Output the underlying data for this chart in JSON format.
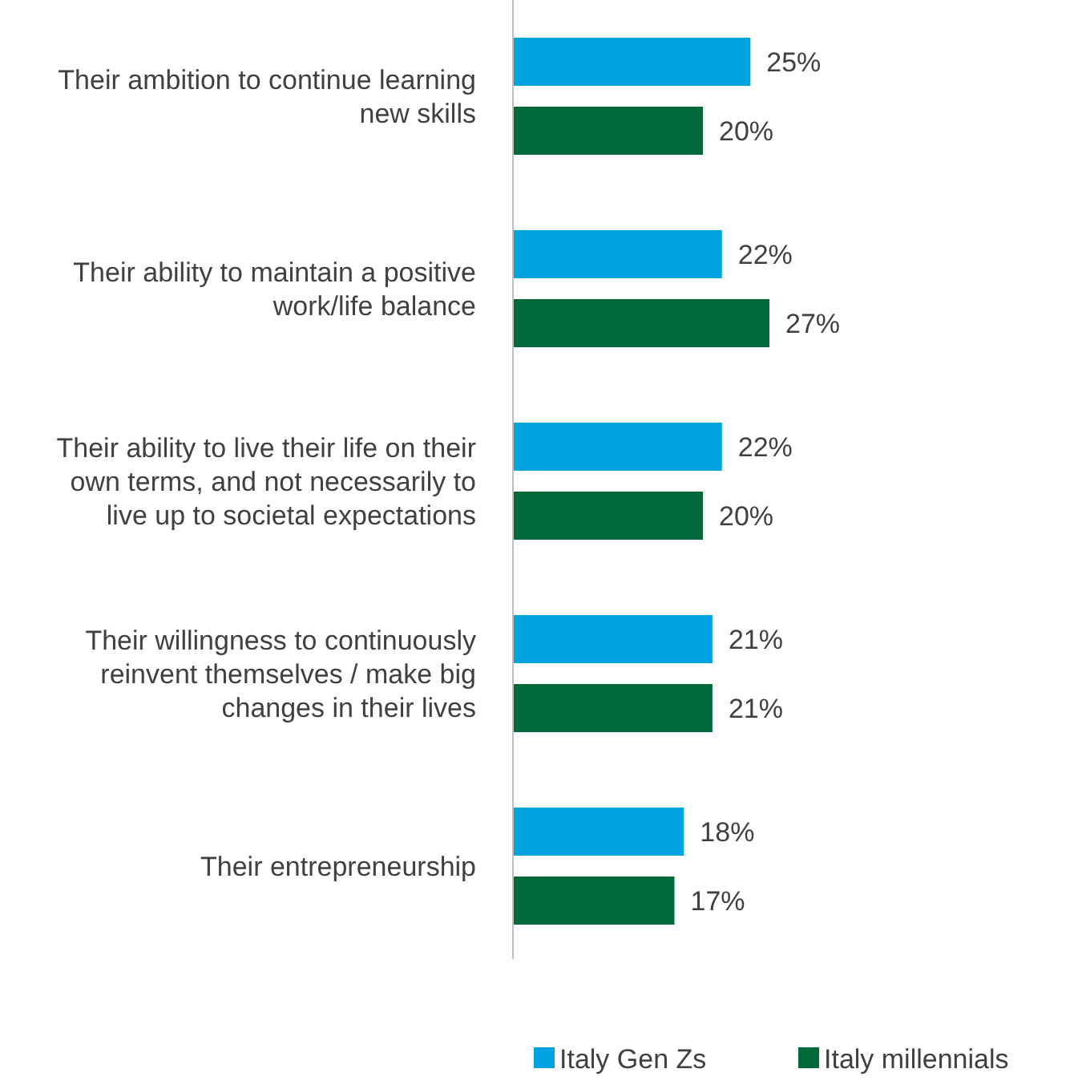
{
  "chart_data": {
    "type": "bar",
    "orientation": "horizontal",
    "categories": [
      "Their ambition to continue learning new skills",
      "Their ability to maintain a positive work/life balance",
      "Their ability to live their life on their own terms, and not necessarily to live up to societal expectations",
      "Their willingness to continuously reinvent themselves / make big changes in their lives",
      "Their entrepreneurship"
    ],
    "series": [
      {
        "name": "Italy Gen Zs",
        "color": "#00a3e0",
        "values": [
          25,
          22,
          22,
          21,
          18
        ],
        "value_labels": [
          "25%",
          "22%",
          "22%",
          "21%",
          "18%"
        ]
      },
      {
        "name": "Italy millennials",
        "color": "#006a3a",
        "values": [
          20,
          27,
          20,
          21,
          17
        ],
        "value_labels": [
          "20%",
          "27%",
          "20%",
          "21%",
          "17%"
        ]
      }
    ],
    "tick_labels": "y",
    "legend": "bottom"
  }
}
